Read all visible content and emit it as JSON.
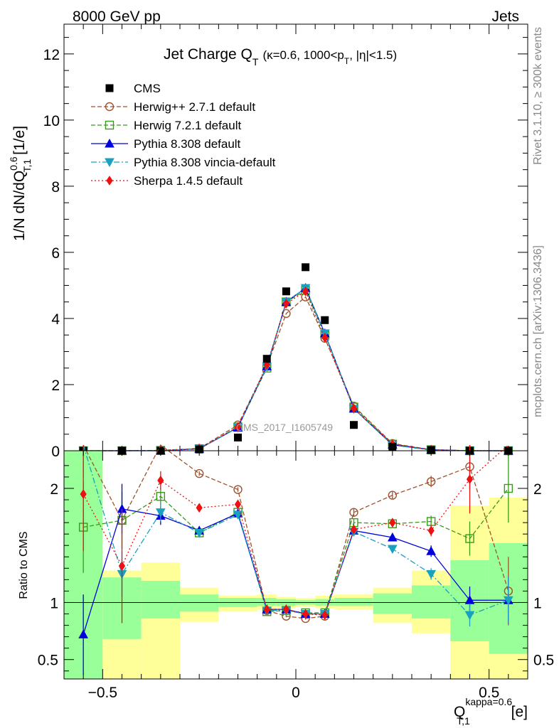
{
  "header": {
    "left": "8000 GeV pp",
    "right": "Jets",
    "side_top": "Rivet 3.1.10, ≥ 300k events",
    "side_bottom": "mcplots.cern.ch [arXiv:1306.3436]",
    "watermark": "CMS_2017_I1605749"
  },
  "chart_data": [
    {
      "type": "scatter",
      "title_main": "Jet Charge Q",
      "title_sub": "T",
      "title_cond": "(κ=0.6, 1000<p",
      "title_cond_sub": "T",
      "title_tail": ", |η|<1.5)",
      "ylabel": "1/N dN/dQ",
      "ylabel_sup": "0.6",
      "ylabel_sub": "T,1",
      "ylabel_unit": " [1/e]",
      "xlim": [
        -0.6,
        0.6
      ],
      "ylim": [
        0,
        12.9
      ],
      "yticks": [
        0,
        2,
        4,
        6,
        8,
        10,
        12
      ],
      "x": [
        -0.55,
        -0.45,
        -0.35,
        -0.25,
        -0.15,
        -0.075,
        -0.025,
        0.025,
        0.075,
        0.15,
        0.25,
        0.35,
        0.45,
        0.55
      ],
      "data": {
        "name": "CMS",
        "values": [
          0.0,
          0.0,
          0.0,
          0.04,
          0.4,
          2.78,
          4.82,
          5.55,
          3.95,
          0.78,
          0.12,
          0.02,
          0.0,
          0.0
        ]
      },
      "series": [
        {
          "name": "Herwig++ 2.7.1 default",
          "color": "#a0522d",
          "values": [
            0.0,
            0.0,
            0.01,
            0.07,
            0.78,
            2.55,
            4.15,
            4.65,
            3.4,
            1.35,
            0.22,
            0.03,
            0.0,
            0.0
          ]
        },
        {
          "name": "Herwig 7.2.1 default",
          "color": "#3a9a1a",
          "values": [
            0.0,
            0.0,
            0.01,
            0.06,
            0.72,
            2.5,
            4.5,
            4.85,
            3.52,
            1.32,
            0.2,
            0.03,
            0.0,
            0.0
          ]
        },
        {
          "name": "Pythia 8.308 default",
          "color": "#0000dd",
          "values": [
            0.0,
            0.0,
            0.0,
            0.06,
            0.7,
            2.55,
            4.5,
            4.92,
            3.55,
            1.27,
            0.18,
            0.03,
            0.0,
            0.0
          ]
        },
        {
          "name": "Pythia 8.308 vincia-default",
          "color": "#1aa0c0",
          "values": [
            0.0,
            0.0,
            0.0,
            0.06,
            0.7,
            2.55,
            4.5,
            4.92,
            3.55,
            1.27,
            0.17,
            0.02,
            0.0,
            0.0
          ]
        },
        {
          "name": "Sherpa 1.4.5 default",
          "color": "#ee1111",
          "values": [
            0.0,
            0.0,
            0.01,
            0.06,
            0.72,
            2.6,
            4.45,
            4.82,
            3.42,
            1.28,
            0.2,
            0.03,
            0.0,
            0.0
          ]
        }
      ]
    },
    {
      "type": "line",
      "ylabel": "Ratio to CMS",
      "xlabel": "Q",
      "xlabel_sup": "kappa=0.6",
      "xlabel_sub": "T,1",
      "xlabel_unit": " [e]",
      "xlim": [
        -0.6,
        0.6
      ],
      "ylim": [
        0.33,
        2.33
      ],
      "yticks": [
        0.5,
        1,
        2
      ],
      "xticks": [
        -0.5,
        0,
        0.5
      ],
      "xtick_labels": [
        "−0.5",
        "0",
        "0.5"
      ],
      "bands": {
        "edges": [
          -0.6,
          -0.5,
          -0.4,
          -0.3,
          -0.2,
          -0.1,
          -0.05,
          0.0,
          0.05,
          0.1,
          0.2,
          0.3,
          0.4,
          0.5,
          0.6
        ],
        "outer_low": [
          0.3,
          0.3,
          0.3,
          0.83,
          0.92,
          0.94,
          0.95,
          0.96,
          0.95,
          0.94,
          0.82,
          0.73,
          0.3,
          0.3
        ],
        "outer_high": [
          2.5,
          1.28,
          1.35,
          1.13,
          1.06,
          1.07,
          1.05,
          1.04,
          1.06,
          1.07,
          1.13,
          1.28,
          1.85,
          1.92
        ],
        "inner_low": [
          0.3,
          0.68,
          0.86,
          0.92,
          0.96,
          0.97,
          0.97,
          0.98,
          0.97,
          0.97,
          0.9,
          0.86,
          0.66,
          0.55
        ],
        "inner_high": [
          2.5,
          1.22,
          1.19,
          1.07,
          1.04,
          1.04,
          1.03,
          1.02,
          1.03,
          1.04,
          1.08,
          1.15,
          1.37,
          1.52
        ]
      },
      "series": [
        {
          "name": "Herwig++ 2.7.1 default",
          "values": [
            2.5,
            1.72,
            2.5,
            2.13,
            1.99,
            0.93,
            0.88,
            0.86,
            0.88,
            1.79,
            1.94,
            2.06,
            2.19,
            1.1
          ],
          "err": [
            0,
            0,
            0,
            0.02,
            0.02,
            0.01,
            0.01,
            0.01,
            0.01,
            0.03,
            0.03,
            0.05,
            0.2,
            0.3
          ]
        },
        {
          "name": "Herwig 7.2.1 default",
          "values": [
            1.66,
            1.72,
            1.93,
            1.61,
            1.79,
            0.92,
            0.93,
            0.91,
            0.91,
            1.7,
            1.69,
            1.71,
            1.56,
            2.0
          ],
          "err": [
            0.4,
            0.25,
            0.08,
            0.03,
            0.02,
            0.01,
            0.01,
            0.01,
            0.01,
            0.03,
            0.03,
            0.05,
            0.15,
            0.3
          ]
        },
        {
          "name": "Pythia 8.308 default",
          "values": [
            0.72,
            1.82,
            1.76,
            1.63,
            1.78,
            0.94,
            0.94,
            0.9,
            0.9,
            1.63,
            1.57,
            1.45,
            1.02,
            1.02
          ],
          "err": [
            0.35,
            0.22,
            0.08,
            0.03,
            0.02,
            0.01,
            0.01,
            0.01,
            0.01,
            0.03,
            0.03,
            0.05,
            0.12,
            0.2
          ]
        },
        {
          "name": "Pythia 8.308 vincia-default",
          "values": [
            2.5,
            1.25,
            1.79,
            1.61,
            1.77,
            0.93,
            0.93,
            0.9,
            0.9,
            1.62,
            1.47,
            1.25,
            0.89,
            1.02
          ],
          "err": [
            0.4,
            0.2,
            0.08,
            0.03,
            0.02,
            0.01,
            0.01,
            0.01,
            0.01,
            0.03,
            0.03,
            0.05,
            0.1,
            0.2
          ]
        },
        {
          "name": "Sherpa 1.4.5 default",
          "values": [
            1.95,
            1.32,
            2.07,
            1.83,
            1.86,
            0.94,
            0.94,
            0.9,
            0.89,
            1.64,
            1.7,
            1.63,
            2.08,
            2.5
          ],
          "err": [
            0.5,
            0.5,
            0.08,
            0.03,
            0.02,
            0.01,
            0.01,
            0.01,
            0.01,
            0.03,
            0.03,
            0.05,
            0.3,
            0
          ]
        }
      ]
    }
  ]
}
